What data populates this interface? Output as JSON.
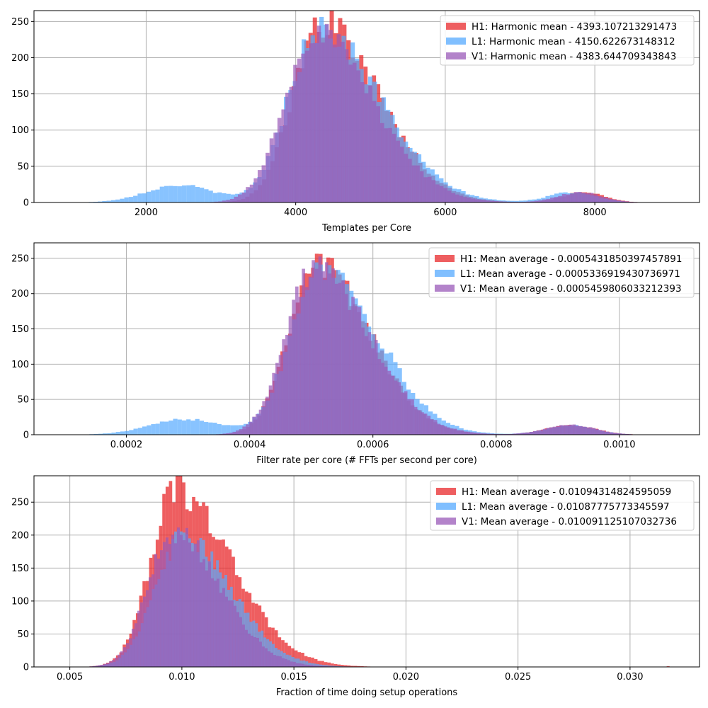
{
  "colors": {
    "H1": "#e8282b",
    "L1": "#55aaff",
    "V1": "#9a5ab8",
    "grid": "#b0b0b0"
  },
  "chart_data": [
    {
      "type": "bar",
      "xlabel": "Templates per Core",
      "xlim": [
        500,
        9400
      ],
      "ylim": [
        0,
        265
      ],
      "xticks": [
        2000,
        4000,
        6000,
        8000
      ],
      "xtick_labels": [
        "2000",
        "4000",
        "6000",
        "8000"
      ],
      "yticks": [
        0,
        50,
        100,
        150,
        200,
        250
      ],
      "ytick_labels": [
        "0",
        "50",
        "100",
        "150",
        "200",
        "250"
      ],
      "grid": true,
      "legend_position": "top-right",
      "series": [
        {
          "name": "H1: Harmonic mean  - 4393.107213291473",
          "key": "H1",
          "shape": {
            "peak": 4350,
            "height": 250,
            "sigma_left": 380,
            "sigma_right": 760
          },
          "extra_bumps": [
            {
              "center": 7850,
              "height": 14,
              "sigma": 280
            }
          ],
          "range": [
            1350,
            9250
          ],
          "bins": 140
        },
        {
          "name": "L1: Harmonic mean  - 4150.622673148312",
          "key": "L1",
          "shape": {
            "peak": 4300,
            "height": 240,
            "sigma_left": 400,
            "sigma_right": 820
          },
          "extra_bumps": [
            {
              "center": 2450,
              "height": 24,
              "sigma": 450
            },
            {
              "center": 7700,
              "height": 14,
              "sigma": 320
            }
          ],
          "range": [
            700,
            9000
          ],
          "bins": 140
        },
        {
          "name": "V1: Harmonic mean  - 4383.644709343843",
          "key": "V1",
          "shape": {
            "peak": 4250,
            "height": 235,
            "sigma_left": 400,
            "sigma_right": 780
          },
          "extra_bumps": [
            {
              "center": 7800,
              "height": 14,
              "sigma": 300
            }
          ],
          "range": [
            1800,
            9200
          ],
          "bins": 140
        }
      ]
    },
    {
      "type": "bar",
      "xlabel": "Filter rate per core (# FFTs per second per core)",
      "xlim": [
        5e-05,
        0.00113
      ],
      "ylim": [
        0,
        272
      ],
      "xticks": [
        0.0002,
        0.0004,
        0.0006,
        0.0008,
        0.001
      ],
      "xtick_labels": [
        "0.0002",
        "0.0004",
        "0.0006",
        "0.0008",
        "0.0010"
      ],
      "yticks": [
        0,
        50,
        100,
        150,
        200,
        250
      ],
      "ytick_labels": [
        "0",
        "50",
        "100",
        "150",
        "200",
        "250"
      ],
      "grid": true,
      "legend_position": "top-right",
      "series": [
        {
          "name": "H1: Mean average - 0.0005431850397457891",
          "key": "H1",
          "shape": {
            "peak": 0.000508,
            "height": 245,
            "sigma_left": 4.5e-05,
            "sigma_right": 8.5e-05
          },
          "extra_bumps": [
            {
              "center": 0.00092,
              "height": 14,
              "sigma": 4e-05
            }
          ],
          "range": [
            0.00022,
            0.00109
          ],
          "bins": 140
        },
        {
          "name": "L1: Mean average - 0.0005336919430736971",
          "key": "L1",
          "shape": {
            "peak": 0.000515,
            "height": 240,
            "sigma_left": 4.8e-05,
            "sigma_right": 9e-05
          },
          "extra_bumps": [
            {
              "center": 0.0003,
              "height": 22,
              "sigma": 6e-05
            },
            {
              "center": 0.00092,
              "height": 13,
              "sigma": 4e-05
            }
          ],
          "range": [
            9e-05,
            0.00109
          ],
          "bins": 140
        },
        {
          "name": "V1: Mean average - 0.0005459806033212393",
          "key": "V1",
          "shape": {
            "peak": 0.000505,
            "height": 236,
            "sigma_left": 4.6e-05,
            "sigma_right": 8.8e-05
          },
          "extra_bumps": [
            {
              "center": 0.00092,
              "height": 14,
              "sigma": 4e-05
            }
          ],
          "range": [
            0.00034,
            0.00109
          ],
          "bins": 140
        }
      ]
    },
    {
      "type": "bar",
      "xlabel": "Fraction of time doing setup operations",
      "xlim": [
        0.0034,
        0.0331
      ],
      "ylim": [
        0,
        290
      ],
      "xticks": [
        0.005,
        0.01,
        0.015,
        0.02,
        0.025,
        0.03
      ],
      "xtick_labels": [
        "0.005",
        "0.010",
        "0.015",
        "0.020",
        "0.025",
        "0.030"
      ],
      "yticks": [
        0,
        50,
        100,
        150,
        200,
        250
      ],
      "ytick_labels": [
        "0",
        "50",
        "100",
        "150",
        "200",
        "250"
      ],
      "grid": true,
      "legend_position": "top-right",
      "series": [
        {
          "name": "H1: Mean average - 0.01094314824595059",
          "key": "H1",
          "shape": {
            "peak": 0.0097,
            "height": 268,
            "sigma_left": 0.0011,
            "sigma_right": 0.0025
          },
          "extra_bumps": [],
          "range": [
            0.005,
            0.019
          ],
          "bins": 95,
          "outliers": [
            {
              "x": 0.0317,
              "y": 1
            }
          ]
        },
        {
          "name": "L1: Mean average - 0.01087775773345597",
          "key": "L1",
          "shape": {
            "peak": 0.01,
            "height": 195,
            "sigma_left": 0.0012,
            "sigma_right": 0.0022
          },
          "extra_bumps": [],
          "range": [
            0.0048,
            0.0185
          ],
          "bins": 110
        },
        {
          "name": "V1: Mean average - 0.010091125107032736",
          "key": "V1",
          "shape": {
            "peak": 0.0096,
            "height": 205,
            "sigma_left": 0.0011,
            "sigma_right": 0.0021
          },
          "extra_bumps": [],
          "range": [
            0.0046,
            0.0185
          ],
          "bins": 110
        }
      ]
    }
  ]
}
